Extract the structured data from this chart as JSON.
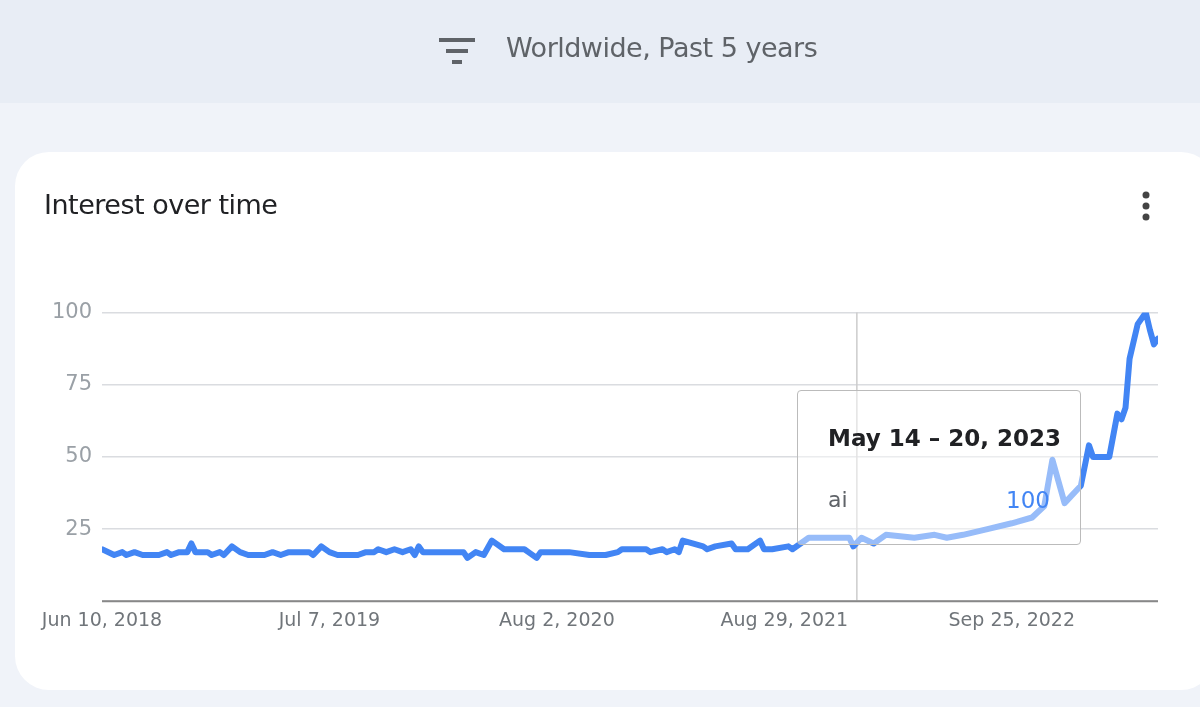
{
  "chart_data": {
    "type": "line",
    "title": "Interest over time",
    "subtitle": "Worldwide, Past 5 years",
    "x": [
      "2018-06-10",
      "2018-07-01",
      "2018-07-15",
      "2018-07-22",
      "2018-08-05",
      "2018-08-19",
      "2018-09-16",
      "2018-09-30",
      "2018-10-07",
      "2018-10-21",
      "2018-11-04",
      "2018-11-11",
      "2018-11-18",
      "2018-12-09",
      "2018-12-16",
      "2018-12-30",
      "2019-01-06",
      "2019-01-20",
      "2019-02-03",
      "2019-02-17",
      "2019-03-17",
      "2019-03-31",
      "2019-04-14",
      "2019-04-28",
      "2019-06-02",
      "2019-06-09",
      "2019-06-23",
      "2019-07-07",
      "2019-07-21",
      "2019-08-25",
      "2019-09-08",
      "2019-09-22",
      "2019-09-29",
      "2019-10-13",
      "2019-10-27",
      "2019-11-10",
      "2019-11-24",
      "2019-12-01",
      "2019-12-08",
      "2019-12-15",
      "2020-01-12",
      "2020-02-23",
      "2020-03-01",
      "2020-03-15",
      "2020-03-29",
      "2020-04-12",
      "2020-05-03",
      "2020-06-07",
      "2020-06-14",
      "2020-06-28",
      "2020-07-05",
      "2020-08-23",
      "2020-09-27",
      "2020-10-25",
      "2020-11-15",
      "2020-11-22",
      "2021-01-03",
      "2021-01-10",
      "2021-01-31",
      "2021-02-07",
      "2021-02-21",
      "2021-02-28",
      "2021-03-07",
      "2021-04-11",
      "2021-04-18",
      "2021-05-02",
      "2021-05-30",
      "2021-06-06",
      "2021-06-27",
      "2021-07-18",
      "2021-07-25",
      "2021-08-08",
      "2021-09-05",
      "2021-09-12",
      "2021-09-26",
      "2021-10-10",
      "2021-12-19",
      "2021-12-26",
      "2022-01-09",
      "2022-01-30",
      "2022-02-20",
      "2022-04-10",
      "2022-05-15",
      "2022-06-05",
      "2022-07-03",
      "2022-08-14",
      "2022-09-25",
      "2022-10-30",
      "2022-11-20",
      "2022-12-04",
      "2022-12-25",
      "2023-01-22",
      "2023-02-05",
      "2023-02-12",
      "2023-03-12",
      "2023-03-26",
      "2023-04-02",
      "2023-04-09",
      "2023-04-16",
      "2023-04-30",
      "2023-05-14",
      "2023-05-21",
      "2023-05-28",
      "2023-06-04"
    ],
    "series": [
      {
        "name": "ai",
        "color": "#4285f4",
        "values": [
          18,
          16,
          17,
          16,
          17,
          16,
          16,
          17,
          16,
          17,
          17,
          20,
          17,
          17,
          16,
          17,
          16,
          19,
          17,
          16,
          16,
          17,
          16,
          17,
          17,
          16,
          19,
          17,
          16,
          16,
          17,
          17,
          18,
          17,
          18,
          17,
          18,
          16,
          19,
          17,
          17,
          17,
          15,
          17,
          16,
          21,
          18,
          18,
          17,
          15,
          17,
          17,
          16,
          16,
          17,
          18,
          18,
          17,
          18,
          17,
          18,
          17,
          21,
          19,
          18,
          19,
          20,
          18,
          18,
          21,
          18,
          18,
          19,
          18,
          20,
          22,
          22,
          19,
          22,
          20,
          23,
          22,
          23,
          22,
          23,
          25,
          27,
          29,
          33,
          49,
          34,
          40,
          54,
          50,
          50,
          65,
          63,
          67,
          84,
          96,
          100,
          94,
          89,
          91
        ]
      }
    ],
    "xlim": [
      "2018-06-10",
      "2023-06-04"
    ],
    "xticks": [
      {
        "value": "2018-06-10",
        "label": "Jun 10, 2018"
      },
      {
        "value": "2019-07-07",
        "label": "Jul 7, 2019"
      },
      {
        "value": "2020-08-02",
        "label": "Aug 2, 2020"
      },
      {
        "value": "2021-08-29",
        "label": "Aug 29, 2021"
      },
      {
        "value": "2022-09-25",
        "label": "Sep 25, 2022"
      }
    ],
    "ylim": [
      0,
      100
    ],
    "yticks": [
      {
        "value": 0,
        "label": null
      },
      25,
      50,
      75,
      100
    ],
    "grid": "y",
    "legend": false,
    "marker": "none",
    "line_style": "solid",
    "ref_lines": [
      {
        "axis": "x",
        "value": "2022-01-01",
        "color": "#cccccc"
      }
    ],
    "annotations": [
      "May 14 – 20, 2023",
      "100"
    ]
  }
}
